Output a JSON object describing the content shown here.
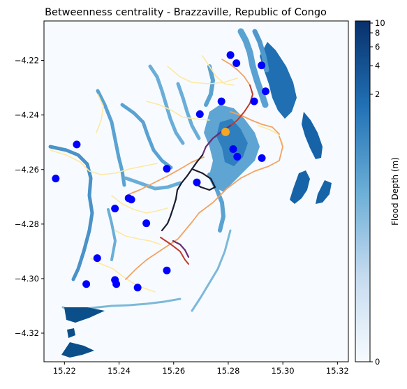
{
  "title": "Betweenness centrality - Brazzaville, Republic of Congo",
  "x_ticks": [
    "15.22",
    "15.24",
    "15.26",
    "15.28",
    "15.30",
    "15.32"
  ],
  "y_ticks": [
    "−4.22",
    "−4.24",
    "−4.26",
    "−4.28",
    "−4.30",
    "−4.32"
  ],
  "colorbar": {
    "label": "Flood Depth (m)",
    "ticks": [
      "10",
      "8",
      "6",
      "4",
      "2",
      "0"
    ],
    "colors": [
      "#f7fbff",
      "#c6dbef",
      "#6baed6",
      "#2171b5",
      "#08306b"
    ]
  },
  "colors": {
    "flood": "#2b7bba",
    "flood_light": "#7db8da",
    "flood_deep": "#0b4f8a",
    "background": "#f7fbff",
    "centrality_low": "#fee8a0",
    "centrality_mid": "#f4a261",
    "centrality_high": "#c0392b",
    "centrality_top": "#6a2c70",
    "centrality_max": "#1b1b2f",
    "facility": "#0000ff",
    "highlight_facility": "#f5a623"
  },
  "facilities_lonlat": [
    [
      15.2808,
      -4.218
    ],
    [
      15.283,
      -4.221
    ],
    [
      15.2922,
      -4.2218
    ],
    [
      15.2937,
      -4.2313
    ],
    [
      15.2895,
      -4.235
    ],
    [
      15.2775,
      -4.235
    ],
    [
      15.2696,
      -4.2397
    ],
    [
      15.2818,
      -4.2525
    ],
    [
      15.2833,
      -4.2553
    ],
    [
      15.2923,
      -4.2558
    ],
    [
      15.2245,
      -4.2508
    ],
    [
      15.2168,
      -4.2633
    ],
    [
      15.2575,
      -4.2597
    ],
    [
      15.2685,
      -4.2647
    ],
    [
      15.2435,
      -4.2705
    ],
    [
      15.2445,
      -4.271
    ],
    [
      15.2385,
      -4.2743
    ],
    [
      15.25,
      -4.2797
    ],
    [
      15.232,
      -4.2925
    ],
    [
      15.2575,
      -4.297
    ],
    [
      15.228,
      -4.302
    ],
    [
      15.2385,
      -4.3005
    ],
    [
      15.239,
      -4.302
    ],
    [
      15.2468,
      -4.3033
    ]
  ],
  "highlight_facility_lonlat": [
    15.279,
    -4.2462
  ]
}
